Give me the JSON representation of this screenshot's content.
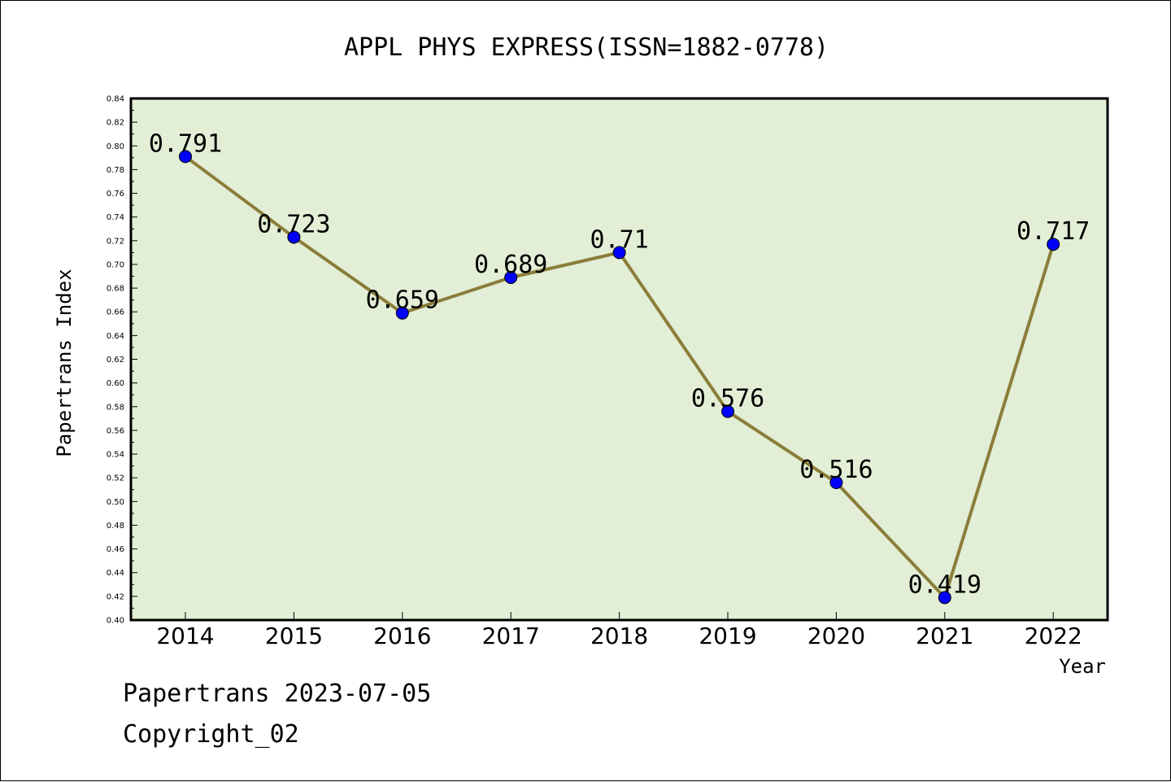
{
  "colors": {
    "plot_background": "#e2efd6",
    "line": "#8b7d3a",
    "marker": "#0000ff",
    "axis": "#000000",
    "text": "#000000"
  },
  "footer": {
    "line1": "Papertrans 2023-07-05",
    "line2": "Copyright_02"
  },
  "chart_data": {
    "type": "line",
    "title": "APPL PHYS EXPRESS(ISSN=1882-0778)",
    "xlabel": "Year",
    "ylabel": "Papertrans Index",
    "categories": [
      "2014",
      "2015",
      "2016",
      "2017",
      "2018",
      "2019",
      "2020",
      "2021",
      "2022"
    ],
    "values": [
      0.791,
      0.723,
      0.659,
      0.689,
      0.71,
      0.576,
      0.516,
      0.419,
      0.717
    ],
    "data_labels": [
      "0.791",
      "0.723",
      "0.659",
      "0.689",
      "0.71",
      "0.576",
      "0.516",
      "0.419",
      "0.717"
    ],
    "ylim": [
      0.4,
      0.84
    ],
    "ytick_step": 0.02,
    "yticks": [
      "0.40",
      "0.42",
      "0.44",
      "0.46",
      "0.48",
      "0.50",
      "0.52",
      "0.54",
      "0.56",
      "0.58",
      "0.60",
      "0.62",
      "0.64",
      "0.66",
      "0.68",
      "0.70",
      "0.72",
      "0.74",
      "0.76",
      "0.78",
      "0.80",
      "0.82",
      "0.84"
    ],
    "grid": false,
    "legend": "none"
  }
}
